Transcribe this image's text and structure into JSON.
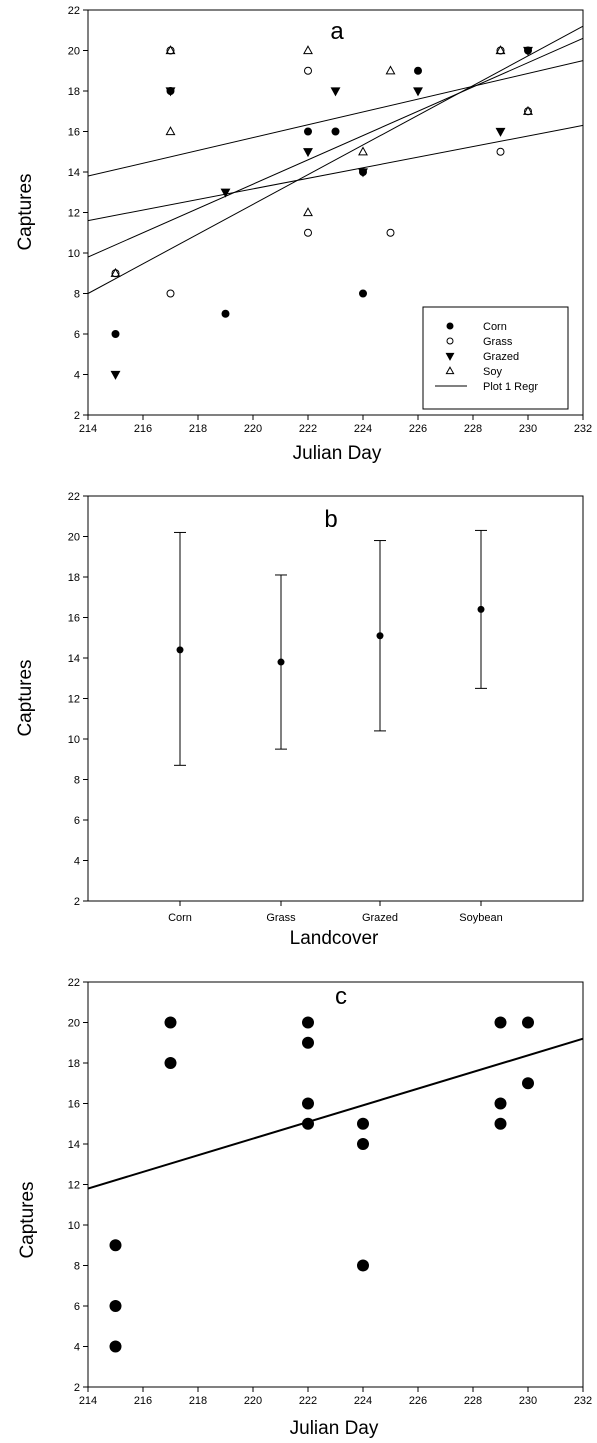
{
  "chart_data": [
    {
      "type": "scatter",
      "panel_label": "a",
      "xlabel": "Julian Day",
      "ylabel": "Captures",
      "xlim": [
        214,
        232
      ],
      "ylim": [
        2,
        22
      ],
      "xticks": [
        214,
        216,
        218,
        220,
        222,
        224,
        226,
        228,
        230,
        232
      ],
      "yticks": [
        2,
        4,
        6,
        8,
        10,
        12,
        14,
        16,
        18,
        20,
        22
      ],
      "grid": false,
      "legend_position": "bottom-right",
      "series": [
        {
          "name": "Corn",
          "marker": "filled-circle",
          "points": [
            [
              215,
              6
            ],
            [
              217,
              18
            ],
            [
              219,
              7
            ],
            [
              222,
              16
            ],
            [
              223,
              16
            ],
            [
              224,
              8
            ],
            [
              224,
              14
            ],
            [
              226,
              19
            ],
            [
              230,
              20
            ]
          ]
        },
        {
          "name": "Grass",
          "marker": "open-circle",
          "points": [
            [
              215,
              9
            ],
            [
              217,
              8
            ],
            [
              217,
              20
            ],
            [
              222,
              19
            ],
            [
              222,
              11
            ],
            [
              225,
              11
            ],
            [
              229,
              15
            ],
            [
              229,
              20
            ],
            [
              230,
              17
            ]
          ]
        },
        {
          "name": "Grazed",
          "marker": "filled-triangle-down",
          "points": [
            [
              215,
              4
            ],
            [
              217,
              18
            ],
            [
              219,
              13
            ],
            [
              222,
              15
            ],
            [
              223,
              18
            ],
            [
              224,
              14
            ],
            [
              226,
              18
            ],
            [
              229,
              16
            ],
            [
              230,
              20
            ]
          ]
        },
        {
          "name": "Soy",
          "marker": "open-triangle-up",
          "points": [
            [
              215,
              9
            ],
            [
              217,
              16
            ],
            [
              217,
              20
            ],
            [
              222,
              20
            ],
            [
              222,
              12
            ],
            [
              224,
              15
            ],
            [
              225,
              19
            ],
            [
              229,
              20
            ],
            [
              230,
              17
            ]
          ]
        }
      ],
      "regression_legend": "Plot 1 Regr",
      "regression_lines": [
        {
          "x": [
            214,
            232
          ],
          "y": [
            13.8,
            19.5
          ]
        },
        {
          "x": [
            214,
            232
          ],
          "y": [
            11.6,
            16.3
          ]
        },
        {
          "x": [
            214,
            232
          ],
          "y": [
            9.8,
            20.6
          ]
        },
        {
          "x": [
            214,
            232
          ],
          "y": [
            8.0,
            21.2
          ]
        }
      ]
    },
    {
      "type": "scatter",
      "panel_label": "b",
      "xlabel": "Landcover",
      "ylabel": "Captures",
      "ylim": [
        2,
        22
      ],
      "yticks": [
        2,
        4,
        6,
        8,
        10,
        12,
        14,
        16,
        18,
        20,
        22
      ],
      "grid": false,
      "categories": [
        "Corn",
        "Grass",
        "Grazed",
        "Soybean"
      ],
      "values": [
        14.4,
        13.8,
        15.1,
        16.4
      ],
      "error_low": [
        8.7,
        9.5,
        10.4,
        12.5
      ],
      "error_high": [
        20.2,
        18.1,
        19.8,
        20.3
      ]
    },
    {
      "type": "scatter",
      "panel_label": "c",
      "xlabel": "Julian Day",
      "ylabel": "Captures",
      "xlim": [
        214,
        232
      ],
      "ylim": [
        2,
        22
      ],
      "xticks": [
        214,
        216,
        218,
        220,
        222,
        224,
        226,
        228,
        230,
        232
      ],
      "yticks": [
        2,
        4,
        6,
        8,
        10,
        12,
        14,
        16,
        18,
        20,
        22
      ],
      "grid": false,
      "points": [
        [
          215,
          4
        ],
        [
          215,
          6
        ],
        [
          215,
          9
        ],
        [
          217,
          18
        ],
        [
          217,
          20
        ],
        [
          222,
          15
        ],
        [
          222,
          16
        ],
        [
          222,
          19
        ],
        [
          222,
          20
        ],
        [
          224,
          8
        ],
        [
          224,
          14
        ],
        [
          224,
          15
        ],
        [
          229,
          15
        ],
        [
          229,
          16
        ],
        [
          229,
          20
        ],
        [
          230,
          17
        ],
        [
          230,
          20
        ]
      ],
      "regression_line": {
        "x": [
          214,
          232
        ],
        "y": [
          11.8,
          19.2
        ]
      }
    }
  ]
}
